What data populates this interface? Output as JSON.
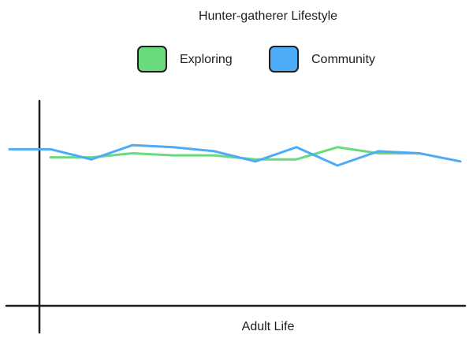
{
  "chart_data": {
    "type": "line",
    "title": "Hunter-gatherer Lifestyle",
    "x_label": "Adult Life",
    "categories": [
      null,
      null,
      null,
      null,
      null,
      null,
      null,
      null,
      null,
      null,
      null,
      null
    ],
    "series": [
      {
        "name": "Exploring",
        "color": "#69db7c",
        "values": [
          null,
          73,
          73,
          75,
          74,
          74,
          72,
          72,
          78,
          75,
          75,
          null
        ]
      },
      {
        "name": "Community",
        "color": "#4dabf7",
        "values": [
          77,
          77,
          72,
          79,
          78,
          76,
          71,
          78,
          69,
          76,
          75,
          71
        ]
      }
    ],
    "ylim": [
      0,
      100
    ],
    "grid": false,
    "legend": "top"
  }
}
